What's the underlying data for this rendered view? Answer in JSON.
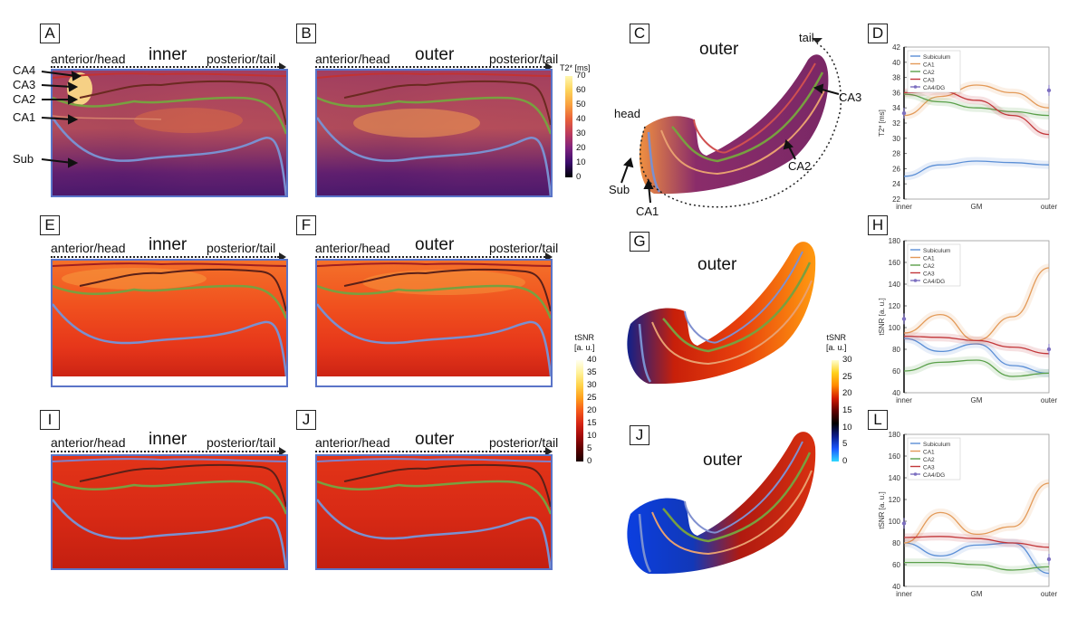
{
  "panel_letters": [
    "A",
    "B",
    "C",
    "D",
    "E",
    "F",
    "G",
    "H",
    "I",
    "J",
    "J",
    "L"
  ],
  "flatmaps": {
    "axis_left": "anterior/head",
    "axis_right": "posterior/tail",
    "inner": "inner",
    "outer": "outer"
  },
  "panelA_labels": [
    "CA4",
    "CA3",
    "CA2",
    "CA1",
    "Sub"
  ],
  "panelC": {
    "title": "outer",
    "labels": {
      "tail": "tail",
      "head": "head",
      "ca3": "CA3",
      "ca2": "CA2",
      "sub": "Sub",
      "ca1": "CA1"
    }
  },
  "panelG_title": "outer",
  "panelJ2_title": "outer",
  "colorbar_t2": {
    "title": "T2* [ms]",
    "ticks": [
      "70",
      "60",
      "50",
      "40",
      "30",
      "20",
      "10",
      "0"
    ],
    "colors": [
      "#fff7b0",
      "#fdd35a",
      "#f9a03f",
      "#e8603a",
      "#bb3a5d",
      "#7c227e",
      "#3a0c6b",
      "#000004"
    ]
  },
  "colorbar_tsnr_flat": {
    "title_line1": "tSNR",
    "title_line2": "[a. u.]",
    "ticks": [
      "40",
      "35",
      "30",
      "25",
      "20",
      "15",
      "10",
      "5",
      "0"
    ],
    "colors": [
      "#fffff0",
      "#fff29a",
      "#ffd34a",
      "#ff9f1c",
      "#f5591b",
      "#d62515",
      "#a10a0a",
      "#5c0000",
      "#1a0000"
    ]
  },
  "colorbar_tsnr_3d": {
    "title_line1": "tSNR",
    "title_line2": "[a. u.]",
    "ticks": [
      "30",
      "25",
      "20",
      "15",
      "10",
      "5",
      "0"
    ],
    "colors": [
      "#ffffd0",
      "#ffd21c",
      "#ff8a00",
      "#d41b00",
      "#600000",
      "#000000",
      "#0a1c8a",
      "#1b59ff",
      "#2fd8ff"
    ]
  },
  "series_colors": {
    "Subiculum": "#5b8fd6",
    "CA1": "#e39a58",
    "CA2": "#5aa04a",
    "CA3": "#c2373a",
    "CA4/DG": "#7c6fc0"
  },
  "chart_data": [
    {
      "id": "D",
      "type": "line",
      "ylabel": "T2* [ms]",
      "xlabel_ticks": [
        "inner",
        "GM",
        "outer"
      ],
      "ylim": [
        22,
        42
      ],
      "yticks": [
        22,
        24,
        26,
        28,
        30,
        32,
        34,
        36,
        38,
        40,
        42
      ],
      "legend": [
        "Subiculum",
        "CA1",
        "CA2",
        "CA3",
        "CA4/DG"
      ],
      "x": [
        0,
        0.25,
        0.5,
        0.75,
        1.0
      ],
      "series": [
        {
          "name": "Subiculum",
          "values": [
            25.0,
            26.5,
            27.0,
            26.8,
            26.5
          ]
        },
        {
          "name": "CA1",
          "values": [
            33.0,
            35.5,
            37.0,
            36.0,
            34.0
          ]
        },
        {
          "name": "CA2",
          "values": [
            35.8,
            34.8,
            34.0,
            33.5,
            33.0
          ]
        },
        {
          "name": "CA3",
          "values": [
            36.0,
            36.2,
            35.0,
            33.0,
            30.5
          ]
        },
        {
          "name": "CA4/DG",
          "points": [
            [
              0,
              33.3
            ],
            [
              1.0,
              36.3
            ]
          ]
        }
      ]
    },
    {
      "id": "H",
      "type": "line",
      "ylabel": "tSNR [a. u.]",
      "xlabel_ticks": [
        "inner",
        "GM",
        "outer"
      ],
      "ylim": [
        40,
        180
      ],
      "yticks": [
        40,
        60,
        80,
        100,
        120,
        140,
        160,
        180
      ],
      "legend": [
        "Subiculum",
        "CA1",
        "CA2",
        "CA3",
        "CA4/DG"
      ],
      "x": [
        0,
        0.25,
        0.5,
        0.75,
        1.0
      ],
      "series": [
        {
          "name": "Subiculum",
          "values": [
            90.0,
            78.0,
            85.0,
            65.0,
            58.0
          ]
        },
        {
          "name": "CA1",
          "values": [
            95.0,
            112.0,
            88.0,
            110.0,
            155.0
          ]
        },
        {
          "name": "CA2",
          "values": [
            60.0,
            68.0,
            70.0,
            55.0,
            58.0
          ]
        },
        {
          "name": "CA3",
          "values": [
            92.0,
            91.0,
            88.0,
            82.0,
            76.0
          ]
        },
        {
          "name": "CA4/DG",
          "points": [
            [
              0,
              108.0
            ],
            [
              1.0,
              80.0
            ]
          ]
        }
      ]
    },
    {
      "id": "L",
      "type": "line",
      "ylabel": "tSNR [a. u.]",
      "xlabel_ticks": [
        "inner",
        "GM",
        "outer"
      ],
      "ylim": [
        40,
        180
      ],
      "yticks": [
        40,
        60,
        80,
        100,
        120,
        140,
        160,
        180
      ],
      "legend": [
        "Subiculum",
        "CA1",
        "CA2",
        "CA3",
        "CA4/DG"
      ],
      "x": [
        0,
        0.25,
        0.5,
        0.75,
        1.0
      ],
      "series": [
        {
          "name": "Subiculum",
          "values": [
            80.0,
            68.0,
            78.0,
            80.0,
            52.0
          ]
        },
        {
          "name": "CA1",
          "values": [
            80.0,
            108.0,
            88.0,
            95.0,
            135.0
          ]
        },
        {
          "name": "CA2",
          "values": [
            62.0,
            62.0,
            60.0,
            55.0,
            58.0
          ]
        },
        {
          "name": "CA3",
          "values": [
            85.0,
            86.0,
            84.0,
            80.0,
            76.0
          ]
        },
        {
          "name": "CA4/DG",
          "points": [
            [
              0,
              98.0
            ],
            [
              1.0,
              65.0
            ]
          ]
        }
      ]
    }
  ]
}
